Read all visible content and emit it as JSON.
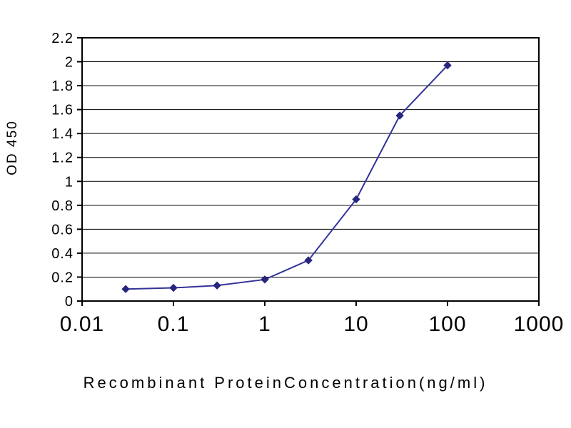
{
  "chart_data": {
    "type": "line",
    "title": "",
    "xlabel": "Recombinant ProteinConcentration(ng/ml)",
    "ylabel": "OD 450",
    "xscale": "log",
    "xlim": [
      0.01,
      1000
    ],
    "ylim": [
      0,
      2.2
    ],
    "xticks": [
      "0.01",
      "0.1",
      "1",
      "10",
      "100",
      "1000"
    ],
    "ytick_step": 0.2,
    "grid": "horizontal",
    "legend": "none",
    "series": [
      {
        "name": "OD450",
        "x": [
          0.03,
          0.1,
          0.3,
          1,
          3,
          10,
          30,
          100
        ],
        "values": [
          0.1,
          0.11,
          0.13,
          0.18,
          0.34,
          0.85,
          1.55,
          1.97
        ]
      }
    ],
    "line_color": "#333399",
    "marker": "diamond",
    "marker_color": "#26267f",
    "axis_color": "#000000",
    "grid_color": "#000000",
    "background": "#ffffff"
  }
}
